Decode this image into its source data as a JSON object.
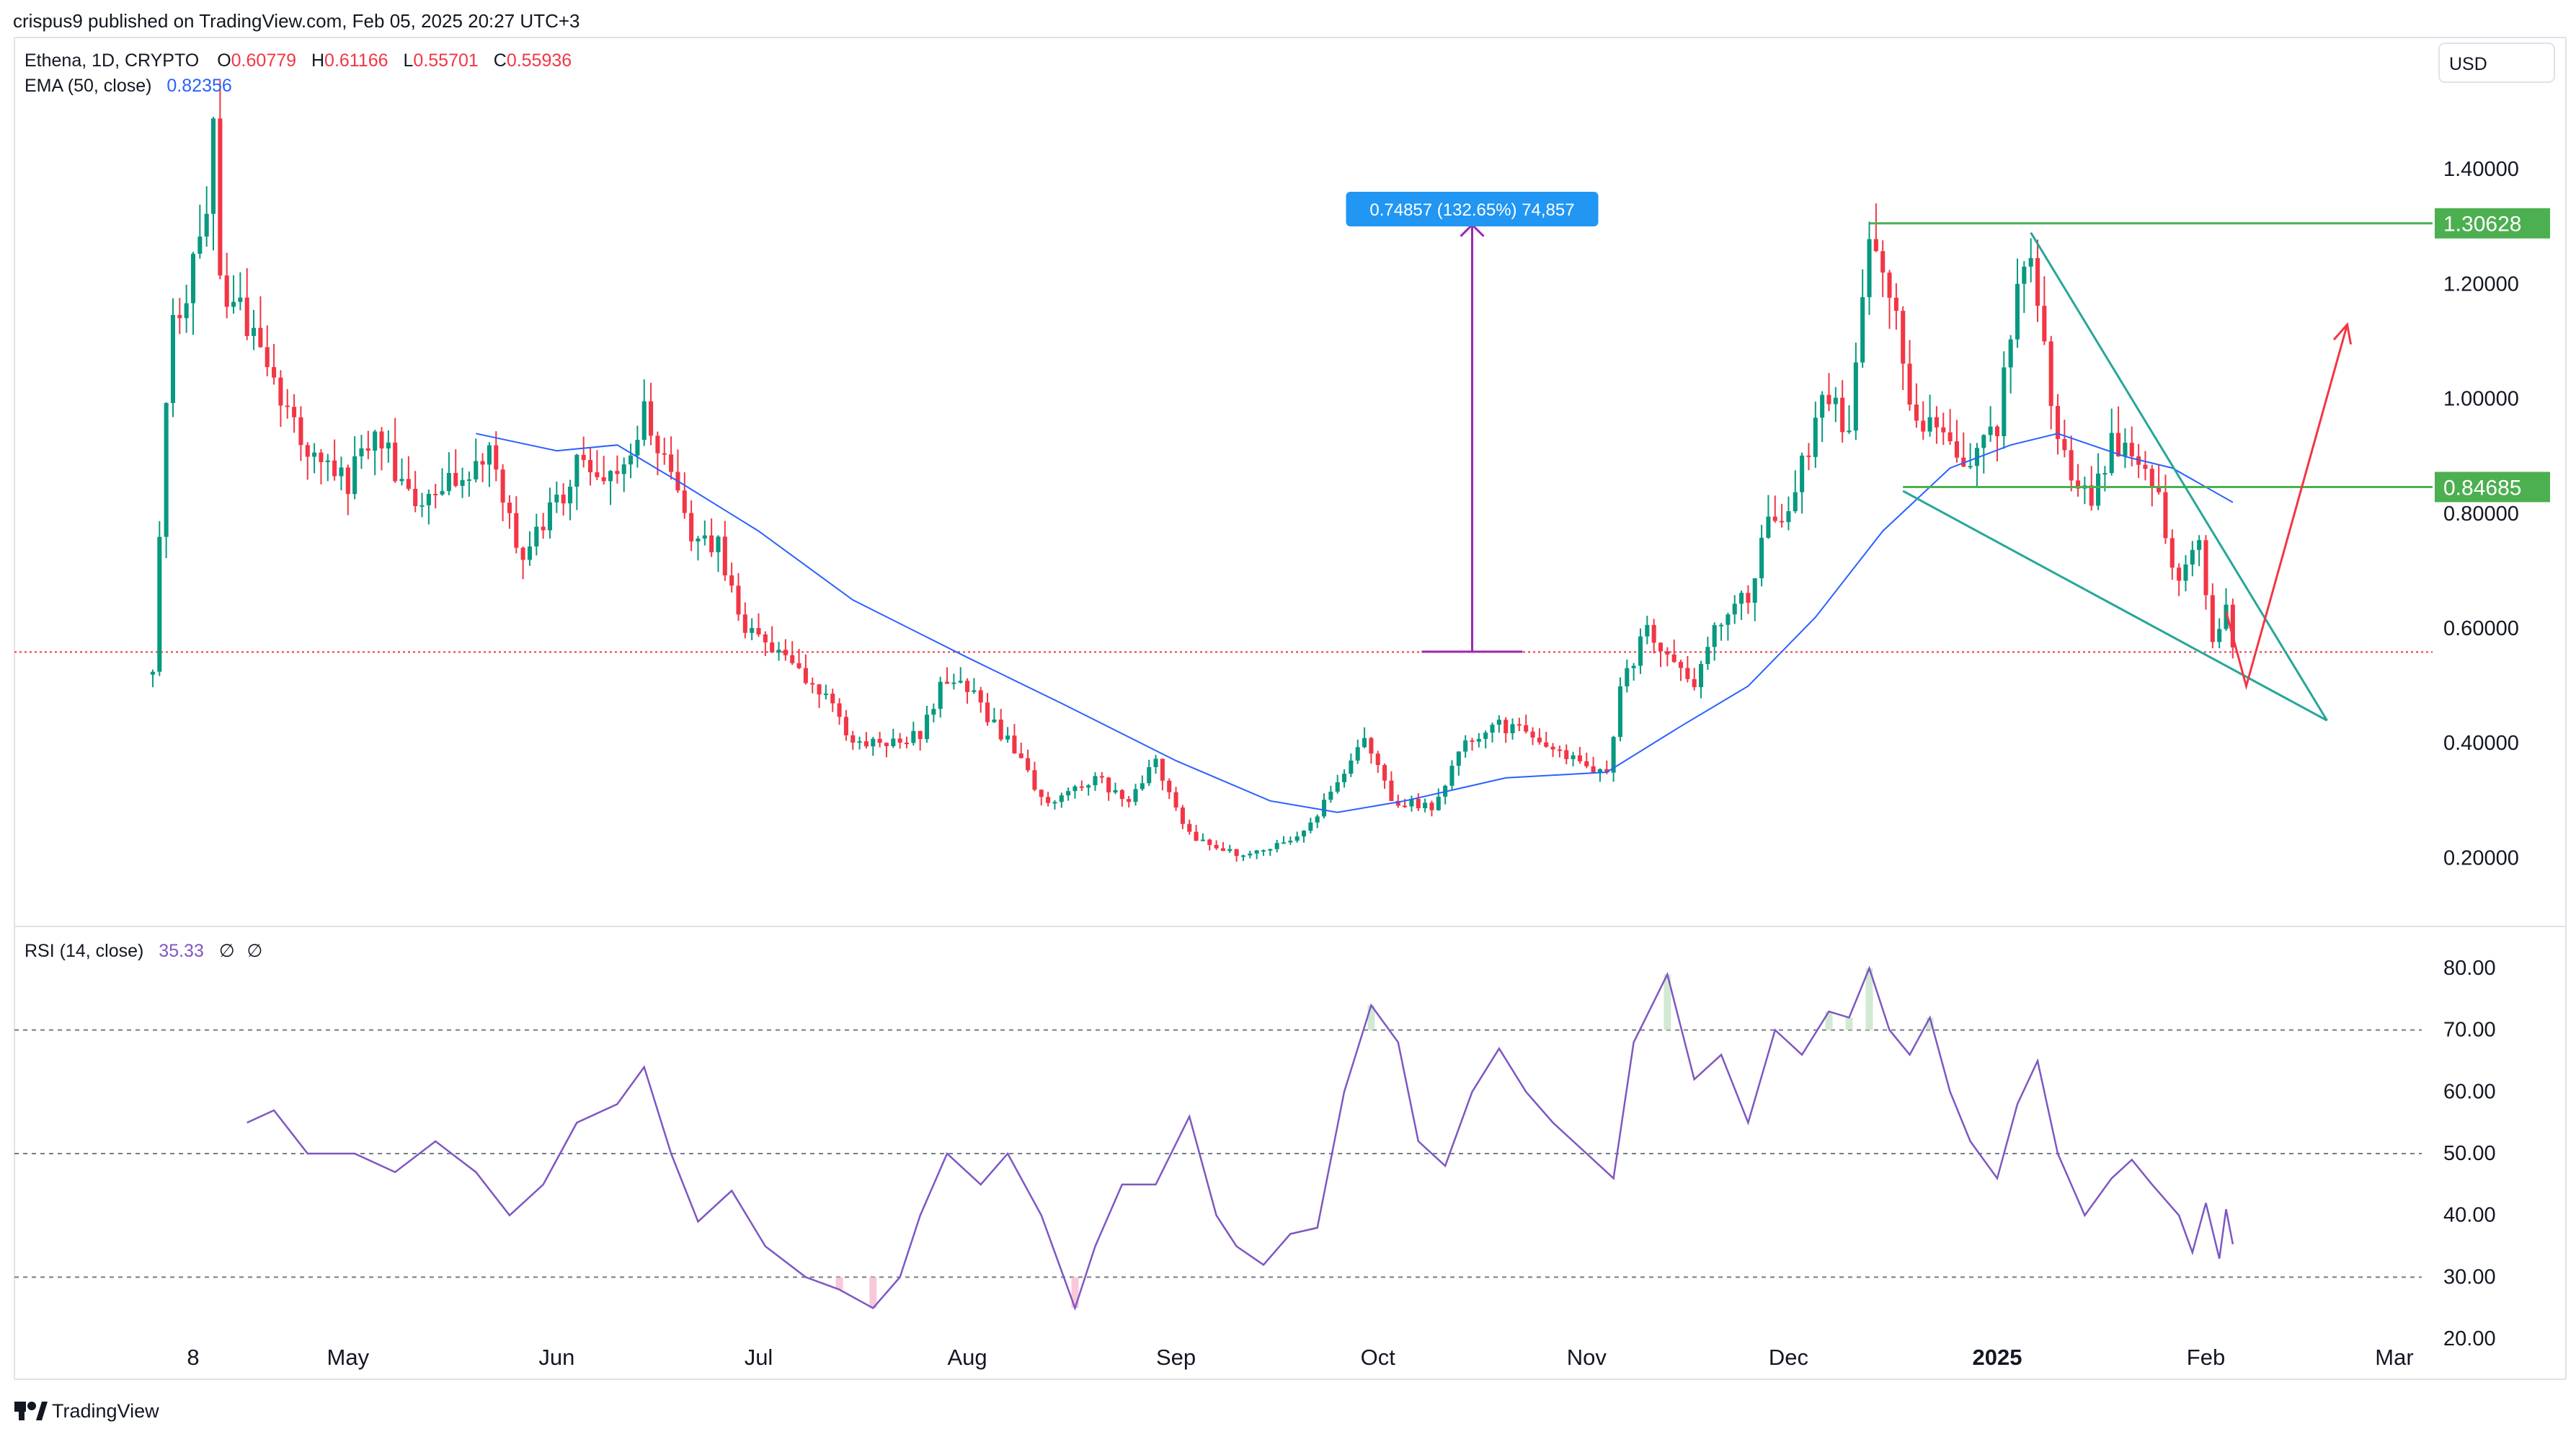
{
  "header": {
    "published": "crispus9 published on TradingView.com, Feb 05, 2025 20:27 UTC+3",
    "symbol": "Ethena, 1D, CRYPTO",
    "ohlc": [
      {
        "key": "O",
        "value": "0.60779"
      },
      {
        "key": "H",
        "value": "0.61166"
      },
      {
        "key": "L",
        "value": "0.55701"
      },
      {
        "key": "C",
        "value": "0.55936"
      }
    ],
    "ema_label": "EMA (50, close)",
    "ema_value": "0.82356",
    "currency": "USD"
  },
  "rsi_header": {
    "label": "RSI (14, close)",
    "value": "35.33",
    "extra1": "∅",
    "extra2": "∅"
  },
  "measure_label": "0.74857 (132.65%) 74,857",
  "footer": {
    "brand": "TradingView",
    "logo": "tradingview-logo-icon"
  },
  "colors": {
    "up": "#089981",
    "down": "#f23645",
    "ema": "#2962ff",
    "rsi": "#7e57c2",
    "green_line": "#4caf50",
    "wedge": "#26a69a",
    "measure": "#9c27b0",
    "arrow": "#f23645",
    "label_bg": "#2196f3"
  },
  "chart_data": [
    {
      "type": "candlestick",
      "title": "Ethena, 1D, CRYPTO",
      "price_axis": {
        "ticks": [
          "0.20000",
          "0.40000",
          "0.60000",
          "0.80000",
          "1.00000",
          "1.20000",
          "1.40000"
        ],
        "ylim": [
          0.1,
          1.62
        ]
      },
      "time_axis": {
        "ticks": [
          {
            "label": "8",
            "date": "2024-04-08"
          },
          {
            "label": "May",
            "date": "2024-05-01"
          },
          {
            "label": "Jun",
            "date": "2024-06-01"
          },
          {
            "label": "Jul",
            "date": "2024-07-01"
          },
          {
            "label": "Aug",
            "date": "2024-08-01"
          },
          {
            "label": "Sep",
            "date": "2024-09-01"
          },
          {
            "label": "Oct",
            "date": "2024-10-01"
          },
          {
            "label": "Nov",
            "date": "2024-11-01"
          },
          {
            "label": "Dec",
            "date": "2024-12-01"
          },
          {
            "label": "2025",
            "date": "2025-01-01",
            "bold": true
          },
          {
            "label": "Feb",
            "date": "2025-02-01"
          },
          {
            "label": "Mar",
            "date": "2025-03-01"
          }
        ],
        "start": "2024-04-02",
        "end": "2025-03-14"
      },
      "price_path": [
        [
          "2024-04-02",
          0.52
        ],
        [
          "2024-04-03",
          0.78
        ],
        [
          "2024-04-04",
          1.0
        ],
        [
          "2024-04-05",
          1.15
        ],
        [
          "2024-04-08",
          1.22
        ],
        [
          "2024-04-10",
          1.33
        ],
        [
          "2024-04-11",
          1.45
        ],
        [
          "2024-04-12",
          1.2
        ],
        [
          "2024-04-15",
          1.15
        ],
        [
          "2024-04-20",
          1.03
        ],
        [
          "2024-04-25",
          0.92
        ],
        [
          "2024-05-01",
          0.86
        ],
        [
          "2024-05-05",
          0.93
        ],
        [
          "2024-05-12",
          0.82
        ],
        [
          "2024-05-18",
          0.87
        ],
        [
          "2024-05-22",
          0.92
        ],
        [
          "2024-05-27",
          0.72
        ],
        [
          "2024-06-01",
          0.82
        ],
        [
          "2024-06-05",
          0.9
        ],
        [
          "2024-06-10",
          0.86
        ],
        [
          "2024-06-14",
          0.98
        ],
        [
          "2024-06-17",
          0.9
        ],
        [
          "2024-06-20",
          0.78
        ],
        [
          "2024-06-25",
          0.74
        ],
        [
          "2024-06-28",
          0.62
        ],
        [
          "2024-07-05",
          0.55
        ],
        [
          "2024-07-10",
          0.5
        ],
        [
          "2024-07-15",
          0.4
        ],
        [
          "2024-07-20",
          0.4
        ],
        [
          "2024-07-25",
          0.42
        ],
        [
          "2024-07-28",
          0.5
        ],
        [
          "2024-08-01",
          0.5
        ],
        [
          "2024-08-05",
          0.43
        ],
        [
          "2024-08-09",
          0.38
        ],
        [
          "2024-08-12",
          0.3
        ],
        [
          "2024-08-16",
          0.31
        ],
        [
          "2024-08-20",
          0.34
        ],
        [
          "2024-08-25",
          0.3
        ],
        [
          "2024-08-29",
          0.37
        ],
        [
          "2024-09-03",
          0.24
        ],
        [
          "2024-09-08",
          0.21
        ],
        [
          "2024-09-13",
          0.21
        ],
        [
          "2024-09-18",
          0.23
        ],
        [
          "2024-09-22",
          0.28
        ],
        [
          "2024-09-26",
          0.35
        ],
        [
          "2024-09-29",
          0.41
        ],
        [
          "2024-10-03",
          0.3
        ],
        [
          "2024-10-09",
          0.29
        ],
        [
          "2024-10-14",
          0.4
        ],
        [
          "2024-10-18",
          0.44
        ],
        [
          "2024-10-22",
          0.42
        ],
        [
          "2024-10-26",
          0.4
        ],
        [
          "2024-10-31",
          0.37
        ],
        [
          "2024-11-04",
          0.34
        ],
        [
          "2024-11-06",
          0.49
        ],
        [
          "2024-11-10",
          0.6
        ],
        [
          "2024-11-14",
          0.54
        ],
        [
          "2024-11-17",
          0.51
        ],
        [
          "2024-11-21",
          0.62
        ],
        [
          "2024-11-25",
          0.66
        ],
        [
          "2024-11-28",
          0.78
        ],
        [
          "2024-12-02",
          0.84
        ],
        [
          "2024-12-06",
          1.0
        ],
        [
          "2024-12-10",
          0.96
        ],
        [
          "2024-12-13",
          1.25
        ],
        [
          "2024-12-16",
          1.18
        ],
        [
          "2024-12-20",
          0.95
        ],
        [
          "2024-12-23",
          0.97
        ],
        [
          "2024-12-27",
          0.88
        ],
        [
          "2025-01-01",
          0.94
        ],
        [
          "2025-01-04",
          1.22
        ],
        [
          "2025-01-06",
          1.25
        ],
        [
          "2025-01-09",
          1.0
        ],
        [
          "2025-01-12",
          0.85
        ],
        [
          "2025-01-15",
          0.83
        ],
        [
          "2025-01-18",
          0.92
        ],
        [
          "2025-01-22",
          0.88
        ],
        [
          "2025-01-25",
          0.82
        ],
        [
          "2025-01-28",
          0.68
        ],
        [
          "2025-01-31",
          0.74
        ],
        [
          "2025-02-02",
          0.56
        ],
        [
          "2025-02-04",
          0.66
        ],
        [
          "2025-02-05",
          0.56
        ]
      ],
      "ema_path": [
        [
          "2024-05-20",
          0.94
        ],
        [
          "2024-06-01",
          0.91
        ],
        [
          "2024-06-10",
          0.92
        ],
        [
          "2024-06-20",
          0.85
        ],
        [
          "2024-07-01",
          0.77
        ],
        [
          "2024-07-15",
          0.65
        ],
        [
          "2024-08-01",
          0.55
        ],
        [
          "2024-08-15",
          0.47
        ],
        [
          "2024-09-01",
          0.37
        ],
        [
          "2024-09-15",
          0.3
        ],
        [
          "2024-09-25",
          0.28
        ],
        [
          "2024-10-05",
          0.3
        ],
        [
          "2024-10-20",
          0.34
        ],
        [
          "2024-11-04",
          0.35
        ],
        [
          "2024-11-15",
          0.43
        ],
        [
          "2024-11-25",
          0.5
        ],
        [
          "2024-12-05",
          0.62
        ],
        [
          "2024-12-15",
          0.77
        ],
        [
          "2024-12-25",
          0.88
        ],
        [
          "2025-01-03",
          0.92
        ],
        [
          "2025-01-10",
          0.94
        ],
        [
          "2025-01-20",
          0.9
        ],
        [
          "2025-01-27",
          0.88
        ],
        [
          "2025-02-05",
          0.82
        ]
      ],
      "last_price": 0.55936,
      "levels": [
        {
          "value": 1.30628,
          "label": "1.30628",
          "from": "2024-12-13"
        },
        {
          "value": 0.84685,
          "label": "0.84685",
          "from": "2024-12-18"
        }
      ],
      "wedge": {
        "upper": [
          [
            "2025-01-06",
            1.29
          ],
          [
            "2025-02-19",
            0.44
          ]
        ],
        "lower": [
          [
            "2024-12-18",
            0.84
          ],
          [
            "2025-02-19",
            0.44
          ]
        ]
      },
      "measure": {
        "date": "2024-10-15",
        "from": 0.56,
        "to": 1.30628
      },
      "projection": [
        [
          "2025-02-04",
          0.63
        ],
        [
          "2025-02-07",
          0.5
        ],
        [
          "2025-02-22",
          1.13
        ]
      ]
    },
    {
      "type": "line",
      "title": "RSI (14, close)",
      "yticks": [
        "20.00",
        "30.00",
        "40.00",
        "50.00",
        "60.00",
        "70.00",
        "80.00"
      ],
      "ylim": [
        15,
        85
      ],
      "bands": [
        70,
        50,
        30
      ],
      "series": [
        {
          "values": [
            [
              "2024-04-16",
              55
            ],
            [
              "2024-04-20",
              57
            ],
            [
              "2024-04-25",
              50
            ],
            [
              "2024-05-02",
              50
            ],
            [
              "2024-05-08",
              47
            ],
            [
              "2024-05-14",
              52
            ],
            [
              "2024-05-20",
              47
            ],
            [
              "2024-05-25",
              40
            ],
            [
              "2024-05-30",
              45
            ],
            [
              "2024-06-04",
              55
            ],
            [
              "2024-06-10",
              58
            ],
            [
              "2024-06-14",
              64
            ],
            [
              "2024-06-18",
              50
            ],
            [
              "2024-06-22",
              39
            ],
            [
              "2024-06-27",
              44
            ],
            [
              "2024-07-02",
              35
            ],
            [
              "2024-07-08",
              30
            ],
            [
              "2024-07-13",
              28
            ],
            [
              "2024-07-18",
              25
            ],
            [
              "2024-07-22",
              30
            ],
            [
              "2024-07-25",
              40
            ],
            [
              "2024-07-29",
              50
            ],
            [
              "2024-08-03",
              45
            ],
            [
              "2024-08-07",
              50
            ],
            [
              "2024-08-12",
              40
            ],
            [
              "2024-08-17",
              25
            ],
            [
              "2024-08-20",
              35
            ],
            [
              "2024-08-24",
              45
            ],
            [
              "2024-08-29",
              45
            ],
            [
              "2024-09-03",
              56
            ],
            [
              "2024-09-07",
              40
            ],
            [
              "2024-09-10",
              35
            ],
            [
              "2024-09-14",
              32
            ],
            [
              "2024-09-18",
              37
            ],
            [
              "2024-09-22",
              38
            ],
            [
              "2024-09-26",
              60
            ],
            [
              "2024-09-30",
              74
            ],
            [
              "2024-10-04",
              68
            ],
            [
              "2024-10-07",
              52
            ],
            [
              "2024-10-11",
              48
            ],
            [
              "2024-10-15",
              60
            ],
            [
              "2024-10-19",
              67
            ],
            [
              "2024-10-23",
              60
            ],
            [
              "2024-10-27",
              55
            ],
            [
              "2024-11-01",
              50
            ],
            [
              "2024-11-05",
              46
            ],
            [
              "2024-11-08",
              68
            ],
            [
              "2024-11-13",
              79
            ],
            [
              "2024-11-17",
              62
            ],
            [
              "2024-11-21",
              66
            ],
            [
              "2024-11-25",
              55
            ],
            [
              "2024-11-29",
              70
            ],
            [
              "2024-12-03",
              66
            ],
            [
              "2024-12-07",
              73
            ],
            [
              "2024-12-10",
              72
            ],
            [
              "2024-12-13",
              80
            ],
            [
              "2024-12-16",
              70
            ],
            [
              "2024-12-19",
              66
            ],
            [
              "2024-12-22",
              72
            ],
            [
              "2024-12-25",
              60
            ],
            [
              "2024-12-28",
              52
            ],
            [
              "2025-01-01",
              46
            ],
            [
              "2025-01-04",
              58
            ],
            [
              "2025-01-07",
              65
            ],
            [
              "2025-01-10",
              50
            ],
            [
              "2025-01-14",
              40
            ],
            [
              "2025-01-18",
              46
            ],
            [
              "2025-01-21",
              49
            ],
            [
              "2025-01-24",
              45
            ],
            [
              "2025-01-28",
              40
            ],
            [
              "2025-01-30",
              34
            ],
            [
              "2025-02-01",
              42
            ],
            [
              "2025-02-03",
              33
            ],
            [
              "2025-02-04",
              41
            ],
            [
              "2025-02-05",
              35.33
            ]
          ]
        }
      ]
    }
  ]
}
